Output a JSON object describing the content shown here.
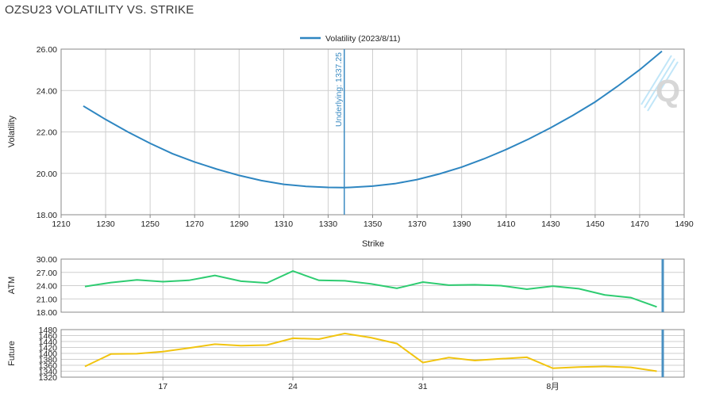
{
  "title": "OZSU23 VOLATILITY VS. STRIKE",
  "colors": {
    "volatility": "#2e86c1",
    "underlying": "#3b8bc2",
    "atm": "#2ecc71",
    "future": "#f1c40f",
    "marker": "#4a90c2"
  },
  "chart_data": [
    {
      "type": "line",
      "title": "",
      "xlabel": "Strike",
      "ylabel": "Volatility",
      "xlim": [
        1210,
        1490
      ],
      "ylim": [
        18,
        26
      ],
      "xticks": [
        "1210",
        "1230",
        "1250",
        "1270",
        "1290",
        "1310",
        "1330",
        "1350",
        "1370",
        "1390",
        "1410",
        "1430",
        "1450",
        "1470",
        "1490"
      ],
      "yticks": [
        "18.00",
        "20.00",
        "22.00",
        "24.00",
        "26.00"
      ],
      "legend_position": "top-center",
      "grid": true,
      "annotation": {
        "text": "Underlying: 1337.25",
        "x": 1337.25
      },
      "series": [
        {
          "name": "Volatility (2023/8/11)",
          "x": [
            1220,
            1230,
            1240,
            1250,
            1260,
            1270,
            1280,
            1290,
            1300,
            1310,
            1320,
            1330,
            1337,
            1340,
            1350,
            1360,
            1370,
            1380,
            1390,
            1400,
            1410,
            1420,
            1430,
            1440,
            1450,
            1460,
            1470,
            1480
          ],
          "y": [
            23.25,
            22.6,
            22.0,
            21.45,
            20.95,
            20.55,
            20.2,
            19.9,
            19.65,
            19.47,
            19.37,
            19.32,
            19.31,
            19.32,
            19.38,
            19.5,
            19.7,
            19.97,
            20.3,
            20.7,
            21.15,
            21.65,
            22.2,
            22.8,
            23.45,
            24.2,
            25.0,
            25.9
          ]
        }
      ]
    },
    {
      "type": "line",
      "title": "",
      "ylabel": "ATM",
      "ylim": [
        18,
        30
      ],
      "yticks": [
        "18.00",
        "21.00",
        "24.00",
        "27.00",
        "30.00"
      ],
      "grid": true,
      "series": [
        {
          "name": "",
          "x": [
            0,
            1,
            2,
            3,
            4,
            5,
            6,
            7,
            8,
            9,
            10,
            11,
            12,
            13,
            14,
            15,
            16,
            17,
            18,
            19,
            20,
            21,
            22
          ],
          "y": [
            23.8,
            24.7,
            25.3,
            24.9,
            25.2,
            26.3,
            25.0,
            24.6,
            27.3,
            25.2,
            25.1,
            24.4,
            23.4,
            24.8,
            24.1,
            24.2,
            24.0,
            23.2,
            23.9,
            23.3,
            21.9,
            21.3,
            19.2
          ]
        }
      ]
    },
    {
      "type": "line",
      "title": "",
      "ylabel": "Future",
      "ylim": [
        1320,
        1480
      ],
      "yticks": [
        "1320",
        "1340",
        "1360",
        "1380",
        "1400",
        "1420",
        "1440",
        "1460",
        "1480"
      ],
      "xticks": [
        "17",
        "24",
        "31",
        "8月"
      ],
      "xtick_positions": [
        3,
        8,
        13,
        18
      ],
      "grid": true,
      "series": [
        {
          "name": "",
          "x": [
            0,
            1,
            2,
            3,
            4,
            5,
            6,
            7,
            8,
            9,
            10,
            11,
            12,
            13,
            14,
            15,
            16,
            17,
            18,
            19,
            20,
            21,
            22
          ],
          "y": [
            1356,
            1398,
            1399,
            1406,
            1418,
            1431,
            1426,
            1428,
            1451,
            1448,
            1467,
            1453,
            1433,
            1369,
            1386,
            1376,
            1382,
            1387,
            1350,
            1354,
            1356,
            1353,
            1340
          ]
        }
      ]
    }
  ]
}
